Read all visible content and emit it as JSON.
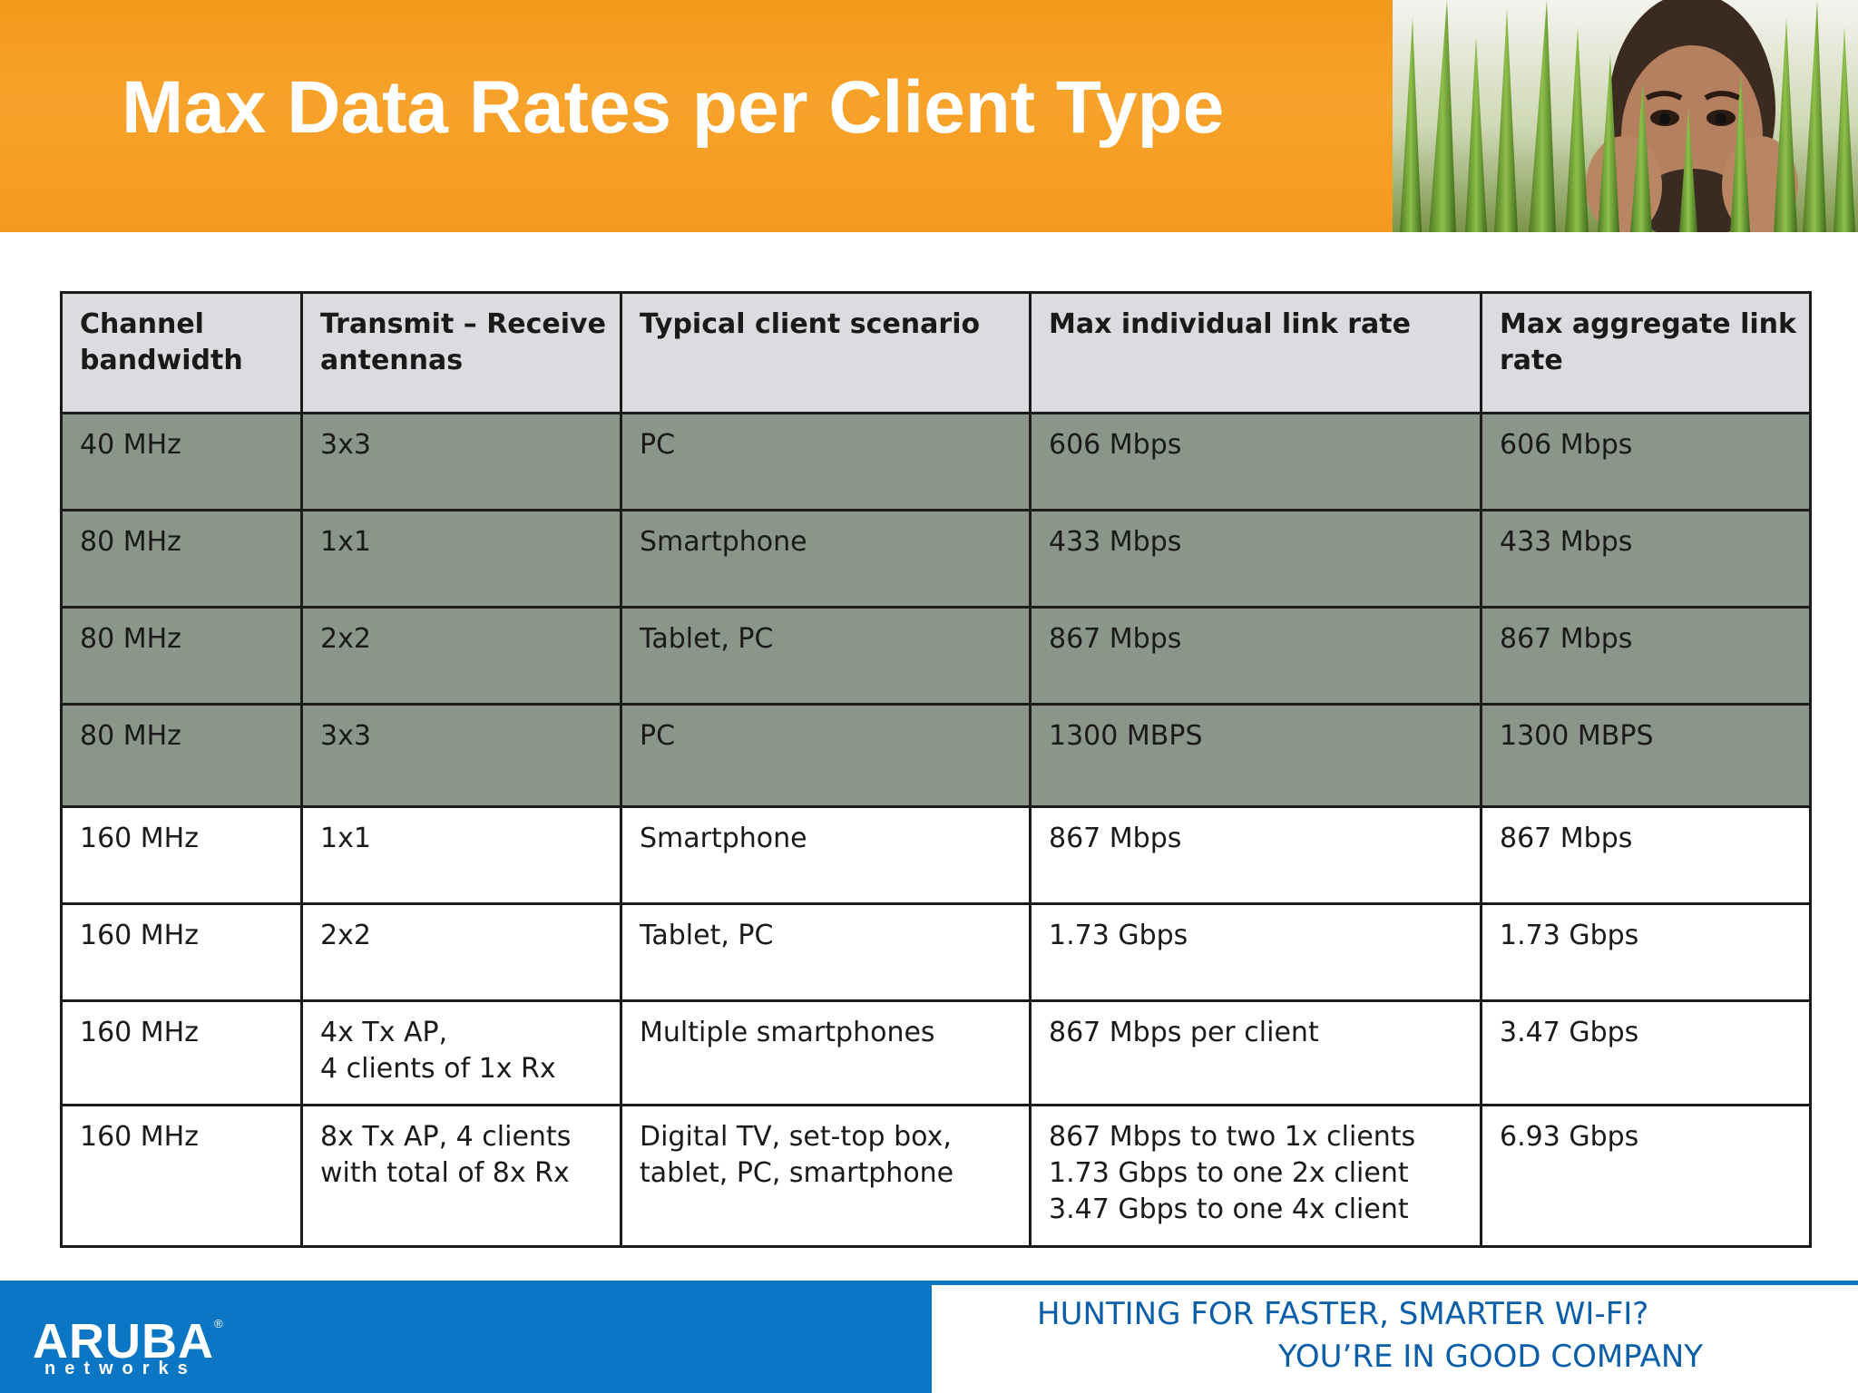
{
  "slide": {
    "title": "Max Data Rates per Client Type"
  },
  "table": {
    "headers": [
      [
        "Channel",
        "bandwidth"
      ],
      [
        "Transmit – Receive",
        "antennas"
      ],
      [
        "Typical client scenario"
      ],
      [
        "Max individual link rate"
      ],
      [
        "Max aggregate link",
        "rate"
      ]
    ],
    "rows": [
      [
        [
          "40 MHz"
        ],
        [
          "3x3"
        ],
        [
          "PC"
        ],
        [
          "606 Mbps"
        ],
        [
          "606 Mbps"
        ]
      ],
      [
        [
          "80 MHz"
        ],
        [
          "1x1"
        ],
        [
          "Smartphone"
        ],
        [
          "433 Mbps"
        ],
        [
          "433 Mbps"
        ]
      ],
      [
        [
          "80 MHz"
        ],
        [
          "2x2"
        ],
        [
          "Tablet, PC"
        ],
        [
          "867 Mbps"
        ],
        [
          "867 Mbps"
        ]
      ],
      [
        [
          "80 MHz"
        ],
        [
          "3x3"
        ],
        [
          "PC"
        ],
        [
          "1300 MBPS"
        ],
        [
          "1300 MBPS"
        ]
      ],
      [
        [
          "160 MHz"
        ],
        [
          "1x1"
        ],
        [
          "Smartphone"
        ],
        [
          "867 Mbps"
        ],
        [
          "867 Mbps"
        ]
      ],
      [
        [
          "160 MHz"
        ],
        [
          "2x2"
        ],
        [
          "Tablet, PC"
        ],
        [
          "1.73 Gbps"
        ],
        [
          "1.73 Gbps"
        ]
      ],
      [
        [
          "160 MHz"
        ],
        [
          "4x Tx AP,",
          "4 clients of 1x Rx"
        ],
        [
          "Multiple smartphones"
        ],
        [
          "867 Mbps per client"
        ],
        [
          "3.47 Gbps"
        ]
      ],
      [
        [
          "160 MHz"
        ],
        [
          "8x Tx AP, 4 clients",
          "with total of 8x Rx"
        ],
        [
          "Digital TV, set-top box,",
          "tablet, PC, smartphone"
        ],
        [
          "867 Mbps to two 1x clients",
          "1.73 Gbps to one 2x client",
          "3.47 Gbps to one 4x client"
        ],
        [
          "6.93 Gbps"
        ]
      ]
    ]
  },
  "footer": {
    "logo_name": "ARUBA",
    "logo_reg": "®",
    "logo_sub": "networks",
    "tagline_1": "HUNTING FOR FASTER, SMARTER WI-FI?",
    "tagline_2": "YOU’RE IN GOOD COMPANY"
  },
  "colors": {
    "header_orange": "#f59a1f",
    "header_row_gray": "#dcdbdf",
    "shaded_row": "#8b968b",
    "footer_blue": "#0b76c4",
    "tagline_blue": "#0b5fa8"
  }
}
